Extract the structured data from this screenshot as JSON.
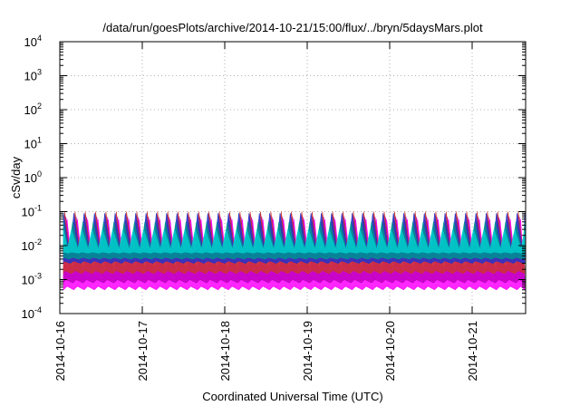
{
  "chart_data": {
    "type": "area",
    "title": "/data/run/goesPlots/archive/2014-10-21/15:00/flux/../bryn/5daysMars.plot",
    "xlabel": "Coordinated Universal Time (UTC)",
    "ylabel": "cSv/day",
    "yscale": "log",
    "ylim": [
      0.0001,
      10000
    ],
    "xlim": [
      "2014-10-16",
      "2014-10-21 16:00"
    ],
    "x_tick_labels": [
      "2014-10-16",
      "2014-10-17",
      "2014-10-18",
      "2014-10-19",
      "2014-10-20",
      "2014-10-21"
    ],
    "y_ticks": [
      {
        "base": "10",
        "exp": "4"
      },
      {
        "base": "10",
        "exp": "3"
      },
      {
        "base": "10",
        "exp": "2"
      },
      {
        "base": "10",
        "exp": "1"
      },
      {
        "base": "10",
        "exp": "0"
      },
      {
        "base": "10",
        "exp": "-1"
      },
      {
        "base": "10",
        "exp": "-2"
      },
      {
        "base": "10",
        "exp": "-3"
      },
      {
        "base": "10",
        "exp": "-4"
      }
    ],
    "grid": true,
    "pattern": {
      "description_free": true,
      "period_hours": 3,
      "overall_max": 0.1,
      "overall_min": 0.0005
    },
    "series": [
      {
        "color": "#ff00ff",
        "low": 0.0005,
        "high": 0.06
      },
      {
        "color": "#c000c0",
        "low": 0.0008,
        "high": 0.07
      },
      {
        "color": "#cc3333",
        "low": 0.0015,
        "high": 0.1
      },
      {
        "color": "#2233cc",
        "low": 0.003,
        "high": 0.09
      },
      {
        "color": "#009090",
        "low": 0.004,
        "high": 0.05
      },
      {
        "color": "#00cccc",
        "low": 0.006,
        "high": 0.03
      }
    ]
  }
}
